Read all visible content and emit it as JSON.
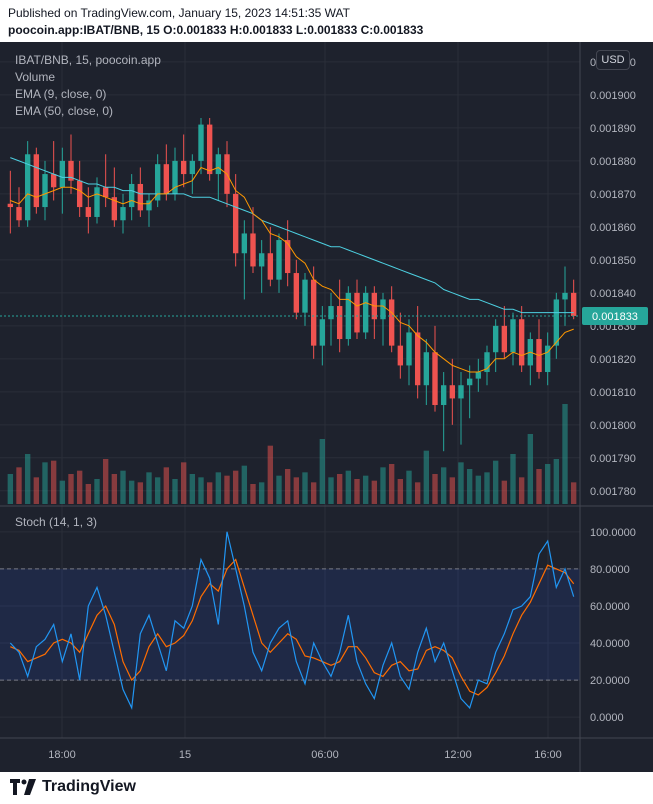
{
  "header": {
    "published": "Published on TradingView.com, January 15, 2023 14:51:35 WAT",
    "symbol_line": "poocoin.app:IBAT/BNB, 15  O:0.001833  H:0.001833  L:0.001833  C:0.001833"
  },
  "legend": {
    "title": "IBAT/BNB, 15, poocoin.app",
    "volume": "Volume",
    "ema9": "EMA (9, close, 0)",
    "ema50": "EMA (50, close, 0)",
    "stoch": "Stoch (14, 1, 3)"
  },
  "currency": "USD",
  "last_price_label": "0.001833",
  "brand": "TradingView",
  "colors": {
    "background": "#1e222d",
    "up": "#26a69a",
    "down": "#ef5350",
    "ema9": "#ff9800",
    "ema50": "#4dd0e1",
    "stoch_k": "#2196f3",
    "stoch_d": "#ff6d00",
    "last_price": "#26a69a"
  },
  "chart_data": {
    "type": "candlestick",
    "symbol": "IBAT/BNB",
    "interval": "15",
    "x_ticks": [
      "18:00",
      "15",
      "06:00",
      "12:00",
      "16:00"
    ],
    "y_ticks": [
      "0.001910",
      "0.001900",
      "0.001890",
      "0.001880",
      "0.001870",
      "0.001860",
      "0.001850",
      "0.001840",
      "0.001830",
      "0.001820",
      "0.001810",
      "0.001800",
      "0.001790",
      "0.001780"
    ],
    "ylim": [
      0.001776,
      0.001913
    ],
    "last_price": 0.001833,
    "candles": [
      [
        0.001867,
        0.001877,
        0.001858,
        0.001866
      ],
      [
        0.001866,
        0.001872,
        0.00186,
        0.001862
      ],
      [
        0.001862,
        0.001886,
        0.00186,
        0.001882
      ],
      [
        0.001882,
        0.001884,
        0.001864,
        0.001866
      ],
      [
        0.001866,
        0.00188,
        0.001862,
        0.001876
      ],
      [
        0.001876,
        0.001886,
        0.001868,
        0.001872
      ],
      [
        0.001872,
        0.001884,
        0.001864,
        0.00188
      ],
      [
        0.00188,
        0.001888,
        0.00187,
        0.001874
      ],
      [
        0.001874,
        0.00188,
        0.001863,
        0.001866
      ],
      [
        0.001866,
        0.001872,
        0.001858,
        0.001863
      ],
      [
        0.001863,
        0.001875,
        0.001861,
        0.001872
      ],
      [
        0.001872,
        0.001882,
        0.001866,
        0.001869
      ],
      [
        0.001869,
        0.001878,
        0.00186,
        0.001862
      ],
      [
        0.001862,
        0.00187,
        0.001858,
        0.001866
      ],
      [
        0.001866,
        0.001876,
        0.001862,
        0.001873
      ],
      [
        0.001873,
        0.001878,
        0.001863,
        0.001865
      ],
      [
        0.001865,
        0.00187,
        0.00186,
        0.001868
      ],
      [
        0.001868,
        0.001882,
        0.001866,
        0.001879
      ],
      [
        0.001879,
        0.001885,
        0.001868,
        0.00187
      ],
      [
        0.00187,
        0.001884,
        0.001868,
        0.00188
      ],
      [
        0.00188,
        0.001888,
        0.001872,
        0.001876
      ],
      [
        0.001876,
        0.001882,
        0.00187,
        0.00188
      ],
      [
        0.00188,
        0.001893,
        0.001876,
        0.001891
      ],
      [
        0.001891,
        0.001893,
        0.001874,
        0.001876
      ],
      [
        0.001876,
        0.001884,
        0.001868,
        0.001882
      ],
      [
        0.001882,
        0.001886,
        0.001866,
        0.00187
      ],
      [
        0.00187,
        0.001876,
        0.001848,
        0.001852
      ],
      [
        0.001852,
        0.001862,
        0.001838,
        0.001858
      ],
      [
        0.001858,
        0.001866,
        0.001846,
        0.001848
      ],
      [
        0.001848,
        0.001856,
        0.00184,
        0.001852
      ],
      [
        0.001852,
        0.00186,
        0.001842,
        0.001844
      ],
      [
        0.001844,
        0.001858,
        0.00184,
        0.001856
      ],
      [
        0.001856,
        0.001862,
        0.001842,
        0.001846
      ],
      [
        0.001846,
        0.00185,
        0.001832,
        0.001834
      ],
      [
        0.001834,
        0.001846,
        0.00183,
        0.001844
      ],
      [
        0.001844,
        0.001848,
        0.00182,
        0.001824
      ],
      [
        0.001824,
        0.001836,
        0.001818,
        0.001832
      ],
      [
        0.001832,
        0.00184,
        0.001824,
        0.001836
      ],
      [
        0.001836,
        0.001844,
        0.001822,
        0.001826
      ],
      [
        0.001826,
        0.001842,
        0.001824,
        0.00184
      ],
      [
        0.00184,
        0.001844,
        0.001826,
        0.001828
      ],
      [
        0.001828,
        0.001842,
        0.001826,
        0.00184
      ],
      [
        0.00184,
        0.001842,
        0.001826,
        0.001832
      ],
      [
        0.001832,
        0.00184,
        0.001824,
        0.001838
      ],
      [
        0.001838,
        0.001842,
        0.001822,
        0.001824
      ],
      [
        0.001824,
        0.001834,
        0.001814,
        0.001818
      ],
      [
        0.001818,
        0.001832,
        0.001812,
        0.001828
      ],
      [
        0.001828,
        0.001836,
        0.001808,
        0.001812
      ],
      [
        0.001812,
        0.001826,
        0.001806,
        0.001822
      ],
      [
        0.001822,
        0.00183,
        0.001804,
        0.001806
      ],
      [
        0.001806,
        0.001816,
        0.001792,
        0.001812
      ],
      [
        0.001812,
        0.00182,
        0.0018,
        0.001808
      ],
      [
        0.001808,
        0.001816,
        0.001794,
        0.001812
      ],
      [
        0.001812,
        0.001818,
        0.001802,
        0.001814
      ],
      [
        0.001814,
        0.00182,
        0.00181,
        0.001816
      ],
      [
        0.001816,
        0.001824,
        0.001812,
        0.001822
      ],
      [
        0.001822,
        0.001832,
        0.001816,
        0.00183
      ],
      [
        0.00183,
        0.001836,
        0.00182,
        0.001822
      ],
      [
        0.001822,
        0.001834,
        0.001818,
        0.001832
      ],
      [
        0.001832,
        0.001836,
        0.001816,
        0.001818
      ],
      [
        0.001818,
        0.001828,
        0.001812,
        0.001826
      ],
      [
        0.001826,
        0.001832,
        0.001814,
        0.001816
      ],
      [
        0.001816,
        0.001828,
        0.001812,
        0.001824
      ],
      [
        0.001824,
        0.00184,
        0.00182,
        0.001838
      ],
      [
        0.001838,
        0.001848,
        0.00183,
        0.00184
      ],
      [
        0.00184,
        0.001844,
        0.001832,
        0.001833
      ]
    ],
    "volume": [
      18,
      22,
      30,
      16,
      25,
      26,
      14,
      18,
      20,
      12,
      15,
      27,
      18,
      20,
      14,
      13,
      19,
      16,
      22,
      15,
      25,
      18,
      16,
      13,
      19,
      17,
      20,
      23,
      12,
      13,
      35,
      17,
      21,
      16,
      19,
      13,
      39,
      16,
      18,
      20,
      15,
      17,
      14,
      22,
      24,
      15,
      20,
      13,
      32,
      18,
      22,
      16,
      25,
      21,
      17,
      19,
      26,
      14,
      30,
      16,
      42,
      21,
      24,
      27,
      60,
      13
    ],
    "volume_up": [
      true,
      false,
      true,
      false,
      true,
      false,
      true,
      false,
      false,
      false,
      true,
      false,
      false,
      true,
      true,
      false,
      true,
      true,
      false,
      true,
      false,
      true,
      true,
      false,
      true,
      false,
      false,
      true,
      false,
      true,
      false,
      true,
      false,
      false,
      true,
      false,
      true,
      true,
      false,
      true,
      false,
      true,
      false,
      true,
      false,
      false,
      true,
      false,
      true,
      false,
      true,
      false,
      true,
      true,
      true,
      true,
      true,
      false,
      true,
      false,
      true,
      false,
      true,
      true,
      true,
      false
    ],
    "ema9": [
      0.001868,
      0.001867,
      0.00187,
      0.001869,
      0.00187,
      0.001871,
      0.001872,
      0.001872,
      0.001871,
      0.001869,
      0.00187,
      0.001869,
      0.001868,
      0.001867,
      0.001868,
      0.001867,
      0.001867,
      0.00187,
      0.00187,
      0.001872,
      0.001873,
      0.001874,
      0.001878,
      0.001877,
      0.001878,
      0.001876,
      0.001871,
      0.001869,
      0.001864,
      0.001862,
      0.001858,
      0.001857,
      0.001855,
      0.001851,
      0.001849,
      0.001844,
      0.001842,
      0.001841,
      0.001838,
      0.001838,
      0.001836,
      0.001837,
      0.001836,
      0.001836,
      0.001834,
      0.001831,
      0.00183,
      0.001827,
      0.001825,
      0.001822,
      0.00182,
      0.001818,
      0.001817,
      0.001816,
      0.001816,
      0.001817,
      0.00182,
      0.00182,
      0.001822,
      0.001821,
      0.001822,
      0.001821,
      0.001822,
      0.001825,
      0.001828,
      0.001829
    ],
    "ema50": [
      0.001881,
      0.00188,
      0.001879,
      0.001878,
      0.001877,
      0.001876,
      0.001875,
      0.001875,
      0.001874,
      0.001873,
      0.001873,
      0.001872,
      0.001872,
      0.001871,
      0.001871,
      0.00187,
      0.00187,
      0.00187,
      0.00187,
      0.00187,
      0.00187,
      0.001869,
      0.001869,
      0.001869,
      0.001868,
      0.001867,
      0.001866,
      0.001865,
      0.001864,
      0.001862,
      0.001861,
      0.00186,
      0.001859,
      0.001858,
      0.001857,
      0.001856,
      0.001855,
      0.001854,
      0.001854,
      0.001853,
      0.001852,
      0.001851,
      0.00185,
      0.001849,
      0.001848,
      0.001847,
      0.001846,
      0.001845,
      0.001844,
      0.001843,
      0.001841,
      0.00184,
      0.001839,
      0.001838,
      0.001838,
      0.001837,
      0.001836,
      0.001835,
      0.001835,
      0.001834,
      0.001834,
      0.001834,
      0.001834,
      0.001834,
      0.001834,
      0.001834
    ],
    "stoch": {
      "y_ticks": [
        "100.0000",
        "80.0000",
        "60.0000",
        "40.0000",
        "20.0000",
        "0.0000"
      ],
      "ylim": [
        -8,
        108
      ],
      "upper_band": 80,
      "lower_band": 20,
      "k": [
        40,
        35,
        22,
        38,
        42,
        50,
        30,
        45,
        20,
        60,
        70,
        55,
        35,
        15,
        5,
        45,
        55,
        40,
        25,
        52,
        48,
        60,
        85,
        75,
        50,
        100,
        80,
        60,
        35,
        25,
        40,
        48,
        52,
        30,
        18,
        40,
        30,
        22,
        35,
        55,
        30,
        18,
        10,
        28,
        40,
        22,
        15,
        35,
        48,
        30,
        40,
        25,
        10,
        5,
        20,
        18,
        35,
        45,
        58,
        60,
        65,
        88,
        95,
        70,
        80,
        65
      ],
      "d": [
        38,
        36,
        30,
        32,
        34,
        40,
        42,
        40,
        35,
        45,
        55,
        60,
        50,
        30,
        20,
        25,
        38,
        45,
        38,
        40,
        44,
        52,
        65,
        72,
        68,
        80,
        85,
        70,
        55,
        40,
        35,
        40,
        45,
        42,
        33,
        32,
        30,
        28,
        30,
        38,
        38,
        32,
        24,
        22,
        28,
        30,
        25,
        26,
        36,
        38,
        36,
        32,
        22,
        14,
        12,
        16,
        24,
        33,
        45,
        55,
        62,
        72,
        82,
        80,
        78,
        72
      ]
    }
  }
}
